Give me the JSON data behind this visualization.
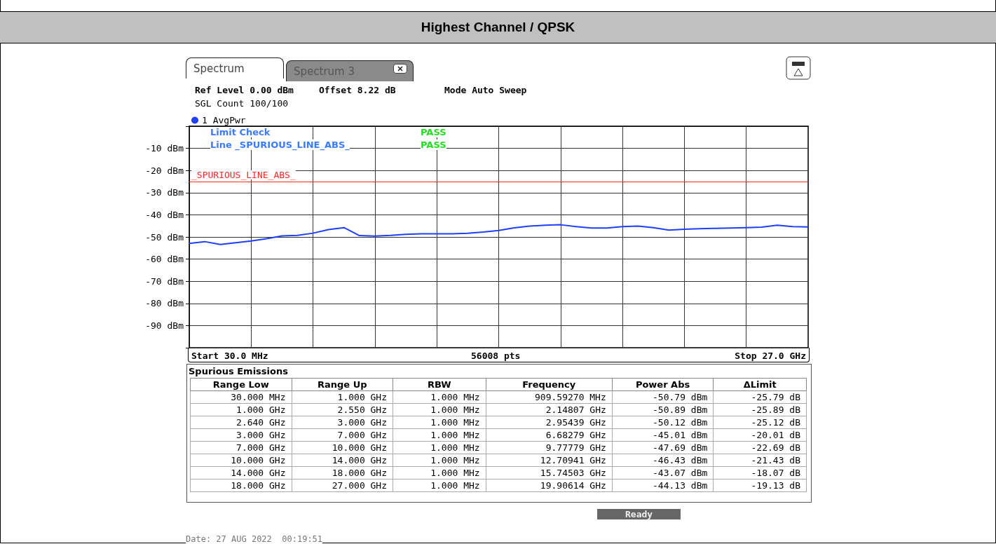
{
  "chart_data": [
    {
      "type": "line",
      "title": "Highest Channel / QPSK",
      "categories": [
        null,
        null,
        null,
        null,
        null,
        null,
        null,
        null,
        null,
        null,
        null,
        null,
        null,
        null,
        null,
        null,
        null,
        null,
        null,
        null,
        null,
        null,
        null,
        null,
        null,
        null,
        null,
        null,
        null,
        null,
        null,
        null,
        null,
        null,
        null,
        null,
        null,
        null,
        null,
        null,
        null
      ],
      "ylim": [
        -100,
        0
      ],
      "yticks": [
        {
          "value": 0,
          "label": null
        },
        {
          "value": -10,
          "label": "-10 dBm"
        },
        {
          "value": -20,
          "label": "-20 dBm"
        },
        {
          "value": -30,
          "label": "-30 dBm"
        },
        {
          "value": -40,
          "label": "-40 dBm"
        },
        {
          "value": -50,
          "label": "-50 dBm"
        },
        {
          "value": -60,
          "label": "-60 dBm"
        },
        {
          "value": -70,
          "label": "-70 dBm"
        },
        {
          "value": -80,
          "label": "-80 dBm"
        },
        {
          "value": -90,
          "label": "-90 dBm"
        },
        {
          "value": -100,
          "label": null
        }
      ],
      "grid": true,
      "legend": "top left",
      "marker": "none",
      "line_style": "solid",
      "series": [
        {
          "name": "1 AvgPwr",
          "color": "#1f3fff",
          "values": [
            -52.9,
            -52.1,
            -53.4,
            -52.6,
            -51.8,
            -50.8,
            -49.5,
            -49.3,
            -48.3,
            -46.7,
            -45.8,
            -49.4,
            -49.6,
            -49.3,
            -48.8,
            -48.6,
            -48.6,
            -48.6,
            -48.3,
            -47.8,
            -47.1,
            -45.9,
            -45.1,
            -44.7,
            -44.5,
            -45.3,
            -46.0,
            -46.0,
            -45.3,
            -45.1,
            -45.8,
            -46.9,
            -46.5,
            -46.3,
            -46.1,
            -46.0,
            -45.8,
            -45.6,
            -44.7,
            -45.3,
            -45.5
          ]
        }
      ],
      "ref_lines": [
        {
          "axis": "y",
          "value": -25,
          "label": "_SPURIOUS_LINE_ABS_",
          "color": "#ff2a2a"
        }
      ],
      "annotations": [
        "Spectrum",
        "Spectrum 3",
        "Ref Level 0.00 dBm",
        "Offset 8.22 dB",
        "Mode Auto Sweep",
        "SGL Count 100/100",
        "Limit Check",
        "PASS",
        "Line _SPURIOUS_LINE_ABS_",
        "PASS",
        "Start 30.0 MHz",
        "56008 pts",
        "Stop 27.0 GHz",
        "Ready",
        "Date: 27 AUG 2022  00:19:51"
      ]
    },
    {
      "type": "other",
      "title": "Spurious Emissions",
      "categories": [
        "Range Low",
        "Range Up",
        "RBW",
        "Frequency",
        "Power Abs",
        "ΔLimit"
      ],
      "annotations": [
        "30.000 MHz",
        "1.000 GHz",
        "1.000 MHz",
        "909.59270 MHz",
        "-50.79 dBm",
        "-25.79 dB",
        "1.000 GHz",
        "2.550 GHz",
        "1.000 MHz",
        "2.14807 GHz",
        "-50.89 dBm",
        "-25.89 dB",
        "2.640 GHz",
        "3.000 GHz",
        "1.000 MHz",
        "2.95439 GHz",
        "-50.12 dBm",
        "-25.12 dB",
        "3.000 GHz",
        "7.000 GHz",
        "1.000 MHz",
        "6.68279 GHz",
        "-45.01 dBm",
        "-20.01 dB",
        "7.000 GHz",
        "10.000 GHz",
        "1.000 MHz",
        "9.77779 GHz",
        "-47.69 dBm",
        "-22.69 dB",
        "10.000 GHz",
        "14.000 GHz",
        "1.000 MHz",
        "12.70941 GHz",
        "-46.43 dBm",
        "-21.43 dB",
        "14.000 GHz",
        "18.000 GHz",
        "1.000 MHz",
        "15.74503 GHz",
        "-43.07 dBm",
        "-18.07 dB",
        "18.000 GHz",
        "27.000 GHz",
        "1.000 MHz",
        "19.90614 GHz",
        "-44.13 dBm",
        "-19.13 dB"
      ]
    }
  ]
}
